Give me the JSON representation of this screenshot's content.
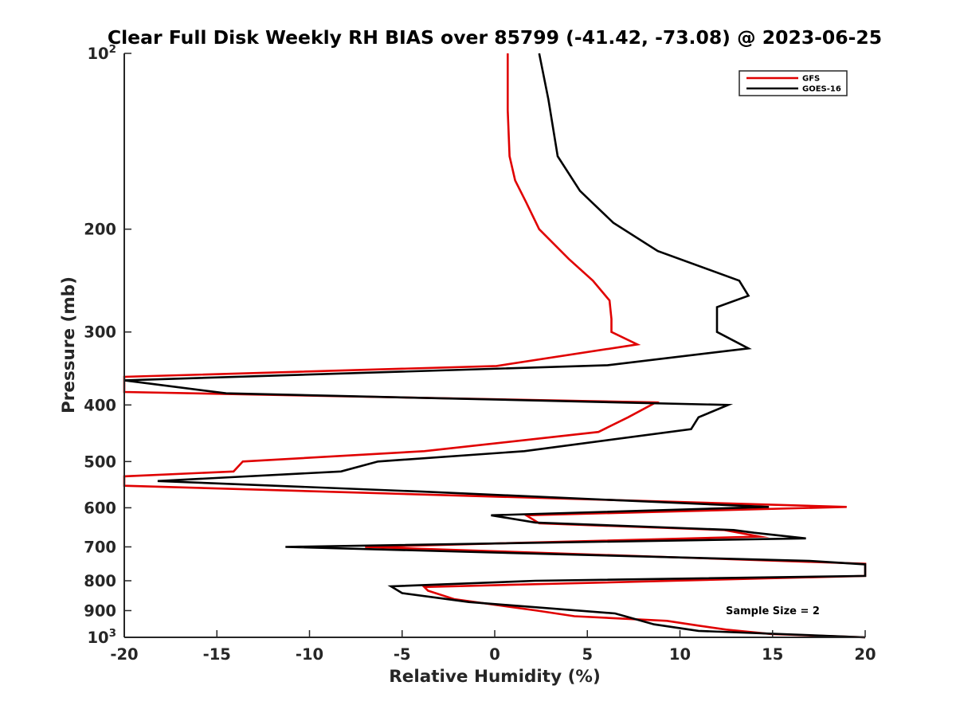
{
  "chart_data": {
    "type": "line",
    "title": "Clear Full Disk Weekly RH BIAS over 85799 (-41.42, -73.08) @ 2023-06-25",
    "xlabel": "Relative Humidity (%)",
    "ylabel": "Pressure (mb)",
    "xlim": [
      -20,
      20
    ],
    "ylim": [
      100,
      1000
    ],
    "y_scale": "log",
    "y_reversed": true,
    "x_ticks": [
      {
        "value": -20,
        "label": "-20"
      },
      {
        "value": -15,
        "label": "-15"
      },
      {
        "value": -10,
        "label": "-10"
      },
      {
        "value": -5,
        "label": "-5"
      },
      {
        "value": 0,
        "label": "0"
      },
      {
        "value": 5,
        "label": "5"
      },
      {
        "value": 10,
        "label": "10"
      },
      {
        "value": 15,
        "label": "15"
      },
      {
        "value": 20,
        "label": "20"
      }
    ],
    "y_ticks": [
      {
        "value": 100,
        "base": "10",
        "exp": "2"
      },
      {
        "value": 200,
        "base": "200",
        "exp": ""
      },
      {
        "value": 300,
        "base": "300",
        "exp": ""
      },
      {
        "value": 400,
        "base": "400",
        "exp": ""
      },
      {
        "value": 500,
        "base": "500",
        "exp": ""
      },
      {
        "value": 600,
        "base": "600",
        "exp": ""
      },
      {
        "value": 700,
        "base": "700",
        "exp": ""
      },
      {
        "value": 800,
        "base": "800",
        "exp": ""
      },
      {
        "value": 900,
        "base": "900",
        "exp": ""
      },
      {
        "value": 1000,
        "base": "10",
        "exp": "3"
      }
    ],
    "grid": false,
    "legend_position": "top-right",
    "annotation": "Sample Size = 2",
    "series": [
      {
        "name": "GFS",
        "color": "#e00000",
        "points": [
          [
            0.7,
            100
          ],
          [
            0.7,
            125
          ],
          [
            0.8,
            150
          ],
          [
            1.1,
            165
          ],
          [
            1.7,
            180
          ],
          [
            2.4,
            200
          ],
          [
            4.0,
            225
          ],
          [
            5.3,
            245
          ],
          [
            6.2,
            265
          ],
          [
            6.3,
            285
          ],
          [
            6.3,
            300
          ],
          [
            7.7,
            315
          ],
          [
            0.1,
            343
          ],
          [
            -20,
            358
          ],
          [
            -20,
            380
          ],
          [
            8.7,
            396
          ],
          [
            7.2,
            420
          ],
          [
            5.6,
            445
          ],
          [
            -3.8,
            480
          ],
          [
            -13.6,
            500
          ],
          [
            -14.1,
            520
          ],
          [
            -20,
            530
          ],
          [
            -20,
            550
          ],
          [
            19.0,
            598
          ],
          [
            1.7,
            618
          ],
          [
            2.4,
            638
          ],
          [
            12.4,
            655
          ],
          [
            14.3,
            672
          ],
          [
            -7.0,
            700
          ],
          [
            20.0,
            748
          ],
          [
            20.0,
            785
          ],
          [
            -3.8,
            820
          ],
          [
            -3.6,
            832
          ],
          [
            -2.2,
            860
          ],
          [
            2.3,
            900
          ],
          [
            4.3,
            920
          ],
          [
            9.3,
            937
          ],
          [
            11.0,
            955
          ],
          [
            12.5,
            970
          ],
          [
            14.9,
            987
          ],
          [
            20.0,
            1000
          ]
        ]
      },
      {
        "name": "GOES-16",
        "color": "#000000",
        "points": [
          [
            2.4,
            100
          ],
          [
            2.9,
            120
          ],
          [
            3.4,
            150
          ],
          [
            4.6,
            172
          ],
          [
            6.4,
            195
          ],
          [
            8.8,
            218
          ],
          [
            13.2,
            245
          ],
          [
            13.7,
            260
          ],
          [
            12.0,
            272
          ],
          [
            12.0,
            300
          ],
          [
            13.7,
            320
          ],
          [
            6.1,
            342
          ],
          [
            -20,
            363
          ],
          [
            -14.5,
            382
          ],
          [
            12.6,
            400
          ],
          [
            11.0,
            420
          ],
          [
            10.6,
            440
          ],
          [
            1.6,
            480
          ],
          [
            -6.3,
            500
          ],
          [
            -8.3,
            520
          ],
          [
            -18.2,
            540
          ],
          [
            -3.9,
            563
          ],
          [
            14.8,
            598
          ],
          [
            -0.2,
            618
          ],
          [
            2.2,
            636
          ],
          [
            12.9,
            655
          ],
          [
            14.0,
            662
          ],
          [
            16.8,
            677
          ],
          [
            -11.3,
            700
          ],
          [
            17.0,
            740
          ],
          [
            20.0,
            750
          ],
          [
            20.0,
            785
          ],
          [
            2.2,
            800
          ],
          [
            -5.6,
            818
          ],
          [
            -5.0,
            840
          ],
          [
            -1.4,
            870
          ],
          [
            6.5,
            910
          ],
          [
            8.6,
            950
          ],
          [
            11.0,
            975
          ],
          [
            20.0,
            1000
          ]
        ]
      }
    ]
  }
}
